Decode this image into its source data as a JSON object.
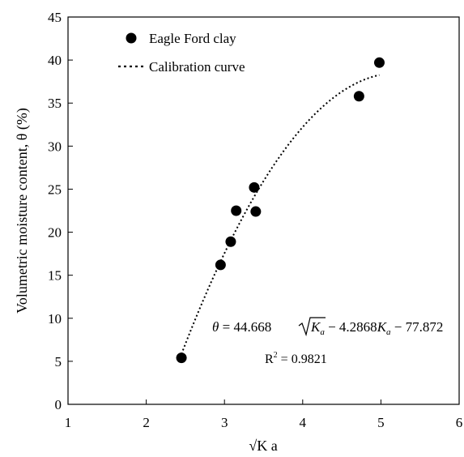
{
  "chart_data": {
    "type": "scatter",
    "xlabel": "√K a",
    "ylabel": "Volumetric moisture content, θ (%)",
    "xlim": [
      1,
      6
    ],
    "ylim": [
      0,
      45
    ],
    "x_ticks": [
      1,
      2,
      3,
      4,
      5,
      6
    ],
    "y_ticks": [
      0,
      5,
      10,
      15,
      20,
      25,
      30,
      35,
      40,
      45
    ],
    "grid": false,
    "legend_position": "top-left",
    "series": [
      {
        "name": "Eagle Ford clay",
        "kind": "scatter",
        "marker": "filled-circle",
        "color": "#000000",
        "x": [
          2.45,
          2.95,
          3.08,
          3.15,
          3.38,
          3.4,
          4.72,
          4.98
        ],
        "y": [
          5.4,
          16.2,
          18.9,
          22.5,
          25.2,
          22.4,
          35.8,
          39.7
        ]
      },
      {
        "name": "Calibration curve",
        "kind": "line",
        "style": "dotted",
        "color": "#000000",
        "equation": {
          "a": 44.668,
          "b": -4.2868,
          "c": -77.872
        },
        "x_range": [
          2.45,
          4.98
        ]
      }
    ],
    "annotations": {
      "equation": {
        "theta": "θ",
        "eq1": " = 44.668",
        "radicand": "K",
        "sub": "a",
        "eq2": " − 4.2868",
        "k2": "K",
        "sub2": "a",
        "eq3": " − 77.872"
      },
      "r2": {
        "label": "R",
        "sup": "2",
        "value": " = 0.9821"
      }
    }
  }
}
